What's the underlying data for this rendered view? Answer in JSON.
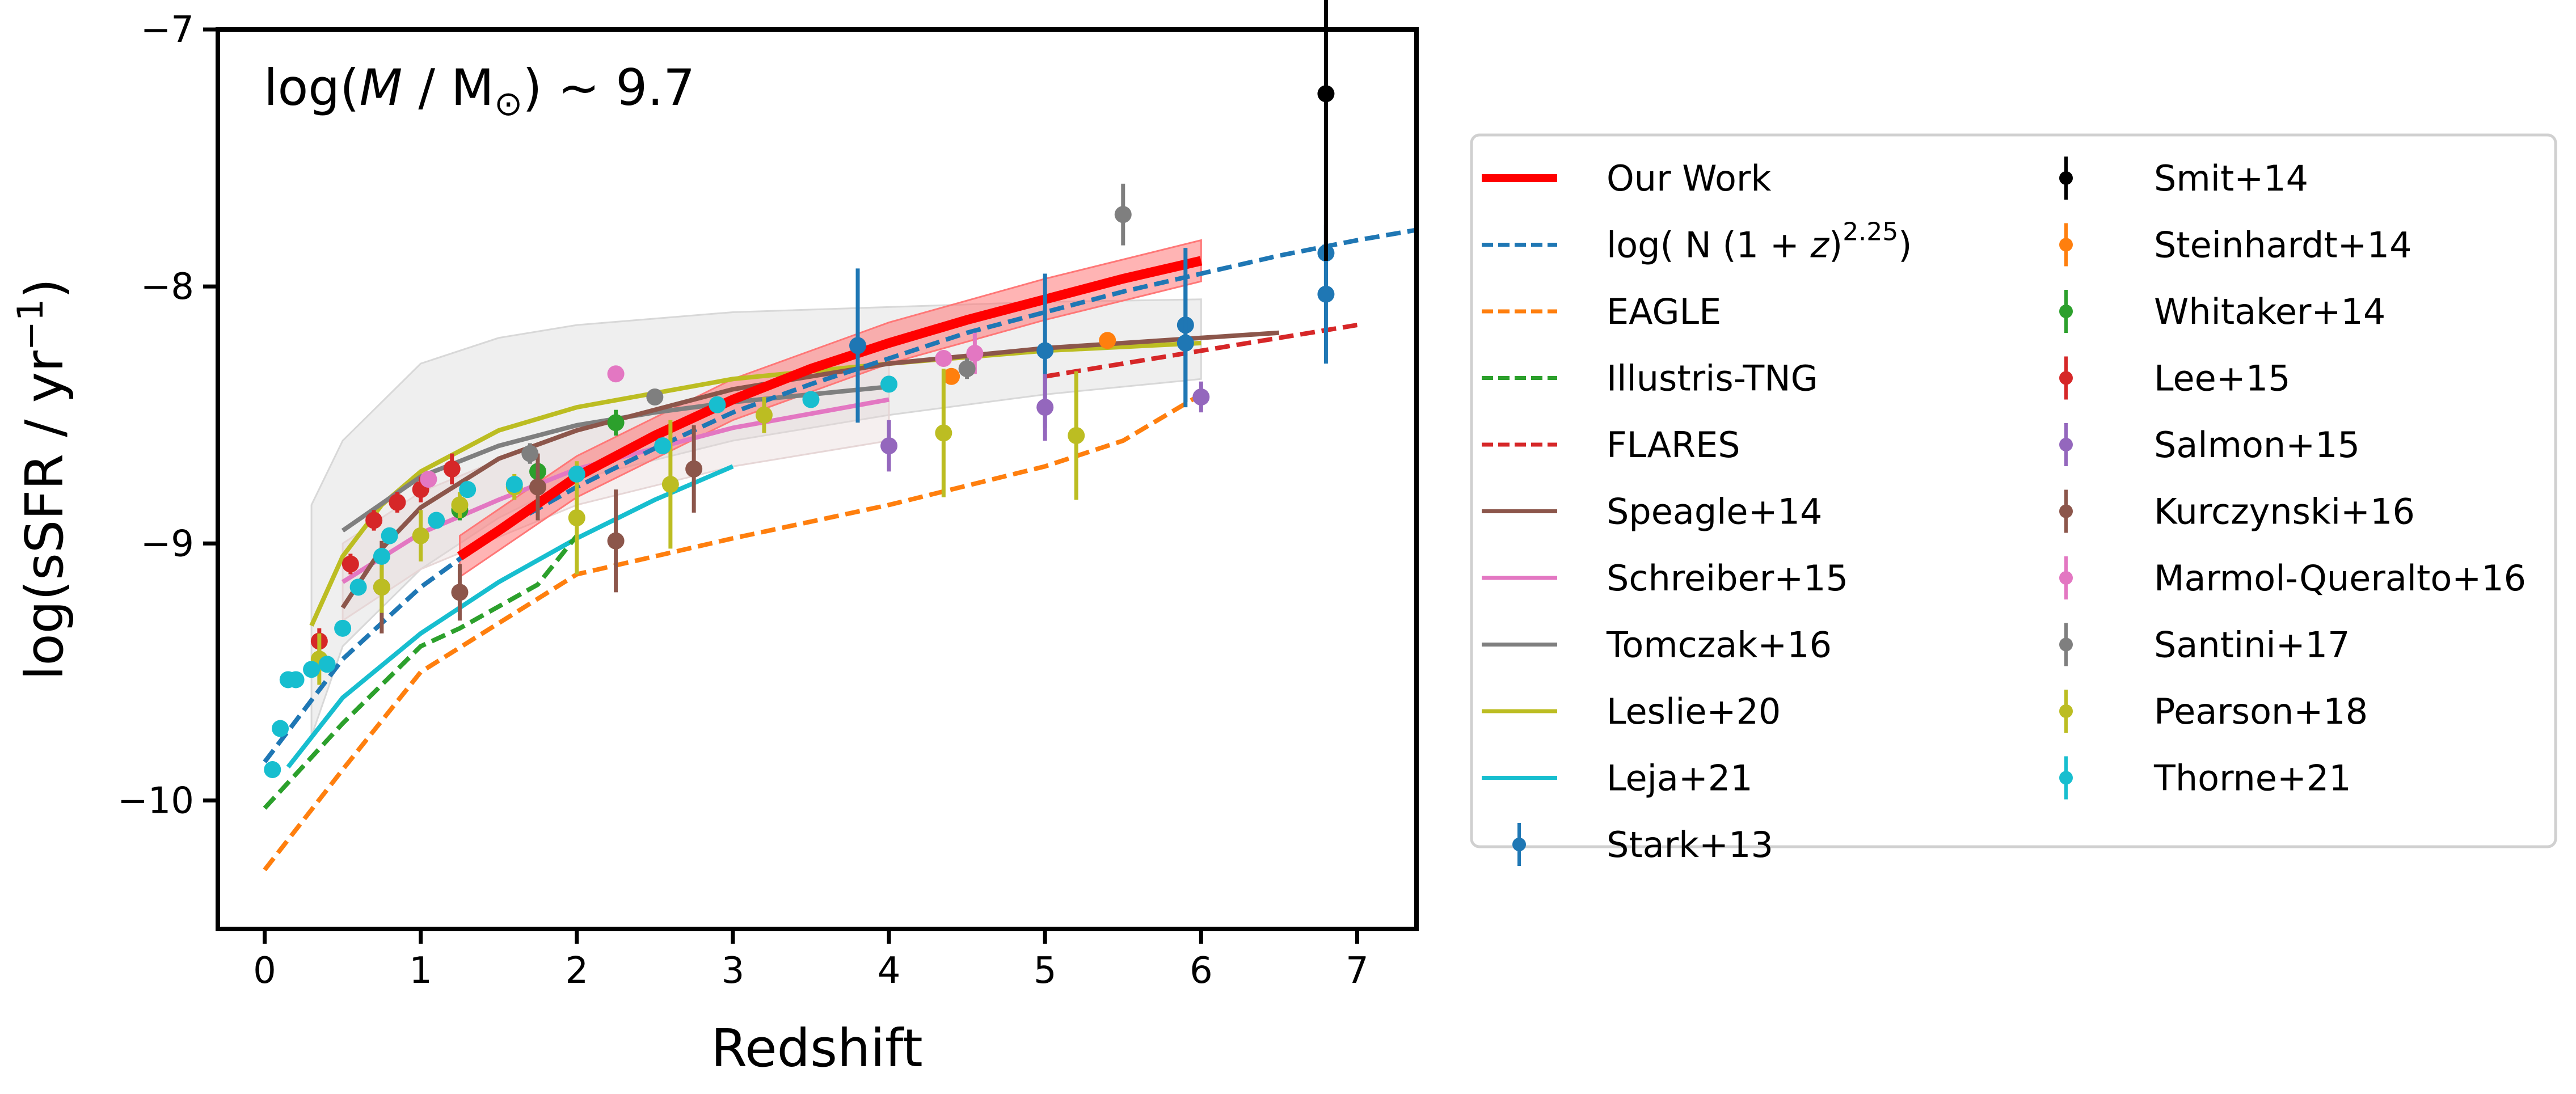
{
  "chart_data": {
    "type": "scatter",
    "title": "",
    "annotation": {
      "pre": "log(",
      "it": "M",
      "mid": " / M",
      "sub": "⊙",
      "post": ") ~ 9.7"
    },
    "xlabel": "Redshift",
    "ylabel": {
      "pre": "log(sSFR / yr",
      "sup": "−1",
      "post": ")"
    },
    "xlim": [
      -0.3,
      7.38
    ],
    "ylim": [
      -10.5,
      -7
    ],
    "xticks": [
      0,
      1,
      2,
      3,
      4,
      5,
      6,
      7
    ],
    "yticks": [
      -10,
      -9,
      -8,
      -7
    ],
    "xtick_labels": [
      "0",
      "1",
      "2",
      "3",
      "4",
      "5",
      "6",
      "7"
    ],
    "ytick_labels": [
      "−10",
      "−9",
      "−8",
      "−7"
    ],
    "grid": false,
    "legend_placement": "outside-right",
    "bands": [
      {
        "name": "Leslie+20 scatter",
        "color": "#d8d8d8",
        "x": [
          0.3,
          0.5,
          1,
          1.5,
          2,
          3,
          4,
          5,
          6
        ],
        "upper": [
          -8.85,
          -8.6,
          -8.3,
          -8.2,
          -8.15,
          -8.1,
          -8.08,
          -8.06,
          -8.05
        ],
        "lower": [
          -9.75,
          -9.4,
          -9.1,
          -8.9,
          -8.75,
          -8.6,
          -8.5,
          -8.42,
          -8.36
        ]
      },
      {
        "name": "Schreiber+15 scatter",
        "color": "#e6d6d6",
        "x": [
          0.5,
          1,
          2,
          3,
          4
        ],
        "upper": [
          -9.0,
          -8.8,
          -8.55,
          -8.4,
          -8.3
        ],
        "lower": [
          -9.3,
          -9.1,
          -8.85,
          -8.7,
          -8.6
        ]
      },
      {
        "name": "Our Work uncertainty",
        "color": "#ff7777",
        "x": [
          1.25,
          2,
          3,
          4,
          5,
          6
        ],
        "upper": [
          -8.97,
          -8.66,
          -8.36,
          -8.14,
          -7.97,
          -7.82
        ],
        "lower": [
          -9.13,
          -8.82,
          -8.52,
          -8.3,
          -8.13,
          -7.98
        ]
      }
    ],
    "lines": [
      {
        "name": "Our Work",
        "color": "#ff0000",
        "dash": false,
        "width": 17,
        "x": [
          1.25,
          1.5,
          2,
          2.5,
          3,
          3.5,
          4,
          4.5,
          5,
          5.5,
          6
        ],
        "y": [
          -9.05,
          -8.95,
          -8.74,
          -8.58,
          -8.44,
          -8.32,
          -8.22,
          -8.13,
          -8.05,
          -7.97,
          -7.9
        ]
      },
      {
        "name": "log( N (1 + z)^2.25)",
        "label_parts": {
          "pre": "log( N (1 + ",
          "it": "z",
          "mid": ")",
          "sup": "2.25",
          "post": ")"
        },
        "color": "#1f77b4",
        "dash": true,
        "width": 8,
        "x": [
          0,
          0.5,
          1,
          1.5,
          2,
          2.5,
          3,
          3.5,
          4,
          4.5,
          5,
          5.5,
          6,
          6.5,
          7,
          7.38
        ],
        "y": [
          -9.85,
          -9.45,
          -9.17,
          -8.95,
          -8.78,
          -8.63,
          -8.49,
          -8.38,
          -8.28,
          -8.18,
          -8.1,
          -8.02,
          -7.95,
          -7.88,
          -7.82,
          -7.78
        ]
      },
      {
        "name": "EAGLE",
        "color": "#ff7f0e",
        "dash": true,
        "width": 8,
        "x": [
          0,
          0.5,
          1,
          2,
          2.5,
          3,
          4,
          5,
          5.5,
          6
        ],
        "y": [
          -10.27,
          -9.88,
          -9.5,
          -9.12,
          -9.05,
          -8.98,
          -8.85,
          -8.7,
          -8.6,
          -8.42
        ]
      },
      {
        "name": "Illustris-TNG",
        "color": "#2ca02c",
        "dash": true,
        "width": 8,
        "x": [
          0,
          0.5,
          1,
          1.25,
          1.75,
          2
        ],
        "y": [
          -10.03,
          -9.7,
          -9.4,
          -9.33,
          -9.16,
          -8.97
        ]
      },
      {
        "name": "FLARES",
        "color": "#d62728",
        "dash": true,
        "width": 8,
        "x": [
          5,
          6,
          7
        ],
        "y": [
          -8.35,
          -8.25,
          -8.15
        ]
      },
      {
        "name": "Speagle+14",
        "color": "#8c564b",
        "dash": false,
        "width": 8,
        "x": [
          0.5,
          0.75,
          1,
          1.5,
          2,
          3,
          4,
          5,
          6,
          6.5
        ],
        "y": [
          -9.25,
          -9.02,
          -8.86,
          -8.67,
          -8.56,
          -8.4,
          -8.3,
          -8.24,
          -8.2,
          -8.18
        ]
      },
      {
        "name": "Schreiber+15",
        "color": "#e377c2",
        "dash": false,
        "width": 8,
        "x": [
          0.5,
          1,
          1.5,
          2,
          3,
          4
        ],
        "y": [
          -9.15,
          -8.96,
          -8.83,
          -8.71,
          -8.55,
          -8.44
        ]
      },
      {
        "name": "Tomczak+16",
        "color": "#7f7f7f",
        "dash": false,
        "width": 8,
        "x": [
          0.5,
          1,
          1.5,
          2,
          2.5,
          3,
          3.5,
          4
        ],
        "y": [
          -8.95,
          -8.74,
          -8.62,
          -8.54,
          -8.49,
          -8.45,
          -8.42,
          -8.39
        ]
      },
      {
        "name": "Leslie+20",
        "color": "#bcbd22",
        "dash": false,
        "width": 8,
        "x": [
          0.3,
          0.5,
          0.75,
          1,
          1.5,
          2,
          3,
          4,
          5,
          6
        ],
        "y": [
          -9.32,
          -9.05,
          -8.85,
          -8.72,
          -8.56,
          -8.47,
          -8.36,
          -8.3,
          -8.25,
          -8.22
        ]
      },
      {
        "name": "Leja+21",
        "color": "#17becf",
        "dash": false,
        "width": 8,
        "x": [
          0.15,
          0.5,
          1,
          1.5,
          2,
          2.5,
          3
        ],
        "y": [
          -9.87,
          -9.6,
          -9.35,
          -9.15,
          -8.98,
          -8.83,
          -8.7
        ]
      }
    ],
    "series": [
      {
        "name": "Stark+13",
        "color": "#1f77b4",
        "x": [
          3.8,
          5.0,
          5.9,
          5.9,
          6.8,
          6.8
        ],
        "y": [
          -8.23,
          -8.25,
          -8.15,
          -8.22,
          -7.87,
          -8.03
        ],
        "yerr": [
          0.3,
          0.3,
          0.3,
          0.25,
          0.17,
          0.27
        ]
      },
      {
        "name": "Smit+14",
        "color": "#000000",
        "x": [
          6.8
        ],
        "y": [
          -7.25
        ],
        "yerr": [
          0.65
        ]
      },
      {
        "name": "Steinhardt+14",
        "color": "#ff7f0e",
        "x": [
          4.4,
          5.4
        ],
        "y": [
          -8.35,
          -8.21
        ],
        "yerr": [
          0.03,
          0.02
        ]
      },
      {
        "name": "Whitaker+14",
        "color": "#2ca02c",
        "x": [
          1.25,
          1.75,
          2.25
        ],
        "y": [
          -8.87,
          -8.72,
          -8.53
        ],
        "yerr": [
          0.04,
          0.05,
          0.05
        ]
      },
      {
        "name": "Lee+15",
        "color": "#d62728",
        "x": [
          0.35,
          0.55,
          0.7,
          0.85,
          1.0,
          1.2
        ],
        "y": [
          -9.38,
          -9.08,
          -8.91,
          -8.84,
          -8.79,
          -8.71
        ],
        "yerr": [
          0.05,
          0.04,
          0.04,
          0.04,
          0.05,
          0.06
        ]
      },
      {
        "name": "Salmon+15",
        "color": "#9467bd",
        "x": [
          4.0,
          5.0,
          6.0
        ],
        "y": [
          -8.62,
          -8.47,
          -8.43
        ],
        "yerr": [
          0.1,
          0.13,
          0.06
        ]
      },
      {
        "name": "Kurczynski+16",
        "color": "#8c564b",
        "x": [
          0.75,
          1.25,
          1.75,
          2.25,
          2.75
        ],
        "y": [
          -9.17,
          -9.19,
          -8.78,
          -8.99,
          -8.71
        ],
        "yerr": [
          0.18,
          0.11,
          0.13,
          0.2,
          0.17
        ]
      },
      {
        "name": "Marmol-Queralto+16",
        "color": "#e377c2",
        "x": [
          1.05,
          2.25,
          4.35,
          4.55
        ],
        "y": [
          -8.75,
          -8.34,
          -8.28,
          -8.26
        ],
        "yerr": [
          0.03,
          0.02,
          0.03,
          0.08
        ]
      },
      {
        "name": "Santini+17",
        "color": "#7f7f7f",
        "x": [
          1.7,
          2.5,
          4.5,
          5.5
        ],
        "y": [
          -8.65,
          -8.43,
          -8.32,
          -7.72
        ],
        "yerr": [
          0.04,
          0.03,
          0.04,
          0.12
        ]
      },
      {
        "name": "Pearson+18",
        "color": "#bcbd22",
        "x": [
          0.35,
          0.75,
          1.0,
          1.25,
          1.6,
          2.0,
          2.6,
          3.2,
          4.35,
          5.2
        ],
        "y": [
          -9.45,
          -9.17,
          -8.97,
          -8.85,
          -8.78,
          -8.9,
          -8.77,
          -8.5,
          -8.57,
          -8.58
        ],
        "yerr": [
          0.1,
          0.1,
          0.1,
          0.05,
          0.05,
          0.22,
          0.25,
          0.07,
          0.25,
          0.25
        ]
      },
      {
        "name": "Thorne+21",
        "color": "#17becf",
        "x": [
          0.05,
          0.1,
          0.15,
          0.2,
          0.3,
          0.4,
          0.5,
          0.6,
          0.75,
          0.8,
          1.1,
          1.3,
          1.6,
          2.0,
          2.55,
          2.9,
          3.5,
          4.0
        ],
        "y": [
          -9.88,
          -9.72,
          -9.53,
          -9.53,
          -9.49,
          -9.47,
          -9.33,
          -9.17,
          -9.05,
          -8.97,
          -8.91,
          -8.79,
          -8.77,
          -8.73,
          -8.62,
          -8.46,
          -8.44,
          -8.38
        ],
        "yerr": [
          0,
          0,
          0.03,
          0,
          0.03,
          0,
          0,
          0,
          0,
          0,
          0,
          0,
          0,
          0,
          0,
          0,
          0,
          0
        ]
      }
    ]
  }
}
